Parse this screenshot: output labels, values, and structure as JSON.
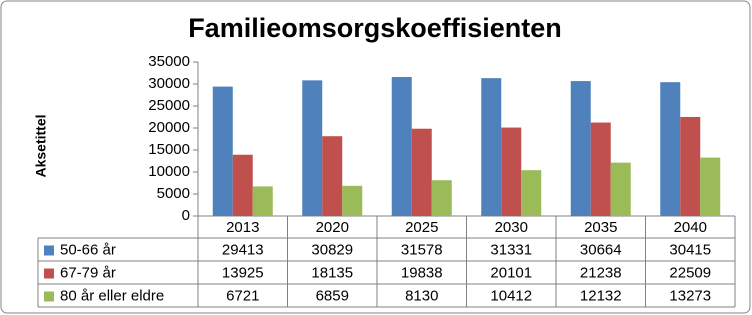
{
  "chart_data": {
    "type": "bar",
    "title": "Familieomsorgskoeffisienten",
    "y_label": "Aksetittel",
    "categories": [
      "2013",
      "2020",
      "2025",
      "2030",
      "2035",
      "2040"
    ],
    "series": [
      {
        "name": "50-66 år",
        "color": "#4f81bd",
        "values": [
          29413,
          30829,
          31578,
          31331,
          30664,
          30415
        ]
      },
      {
        "name": "67-79 år",
        "color": "#c0504d",
        "values": [
          13925,
          18135,
          19838,
          20101,
          21238,
          22509
        ]
      },
      {
        "name": "80 år eller eldre",
        "color": "#9bbb59",
        "values": [
          6721,
          6859,
          8130,
          10412,
          12132,
          13273
        ]
      }
    ],
    "ylim": [
      0,
      35000
    ],
    "yticks": [
      0,
      5000,
      10000,
      15000,
      20000,
      25000,
      30000,
      35000
    ],
    "grid": false,
    "data_table": true
  }
}
